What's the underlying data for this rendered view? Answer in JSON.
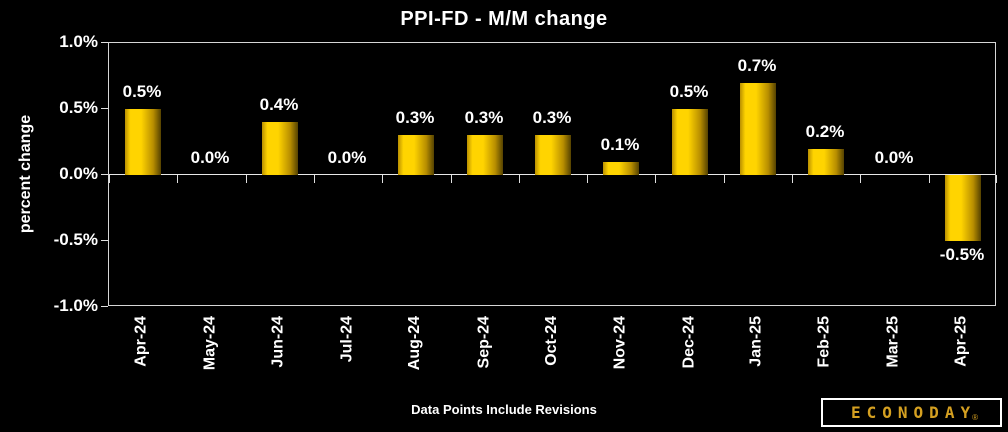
{
  "chart_data": {
    "type": "bar",
    "title": "PPI-FD - M/M change",
    "xlabel": "",
    "ylabel": "percent change",
    "categories": [
      "Apr-24",
      "May-24",
      "Jun-24",
      "Jul-24",
      "Aug-24",
      "Sep-24",
      "Oct-24",
      "Nov-24",
      "Dec-24",
      "Jan-25",
      "Feb-25",
      "Mar-25",
      "Apr-25"
    ],
    "values": [
      0.5,
      0.0,
      0.4,
      0.0,
      0.3,
      0.3,
      0.3,
      0.1,
      0.5,
      0.7,
      0.2,
      0.0,
      -0.5
    ],
    "data_labels": [
      "0.5%",
      "0.0%",
      "0.4%",
      "0.0%",
      "0.3%",
      "0.3%",
      "0.3%",
      "0.1%",
      "0.5%",
      "0.7%",
      "0.2%",
      "0.0%",
      "-0.5%"
    ],
    "ylim": [
      -1.0,
      1.0
    ],
    "ytick_values": [
      1.0,
      0.5,
      0.0,
      -0.5,
      -1.0
    ],
    "ytick_labels": [
      "1.0%",
      "0.5%",
      "0.0%",
      "-0.5%",
      "-1.0%"
    ],
    "grid": false,
    "legend": "none",
    "annotation": "Data Points Include Revisions",
    "colors": {
      "background": "#000000",
      "text": "#ffffff",
      "axis_line": "#d6d6d6",
      "bar_bright": "#ffd400",
      "bar_mid": "#b98f00",
      "bar_dark": "#554200",
      "logo_gold": "#d5a021"
    }
  },
  "branding": {
    "logo_text": "ECONODAY",
    "registered_mark": "®"
  }
}
